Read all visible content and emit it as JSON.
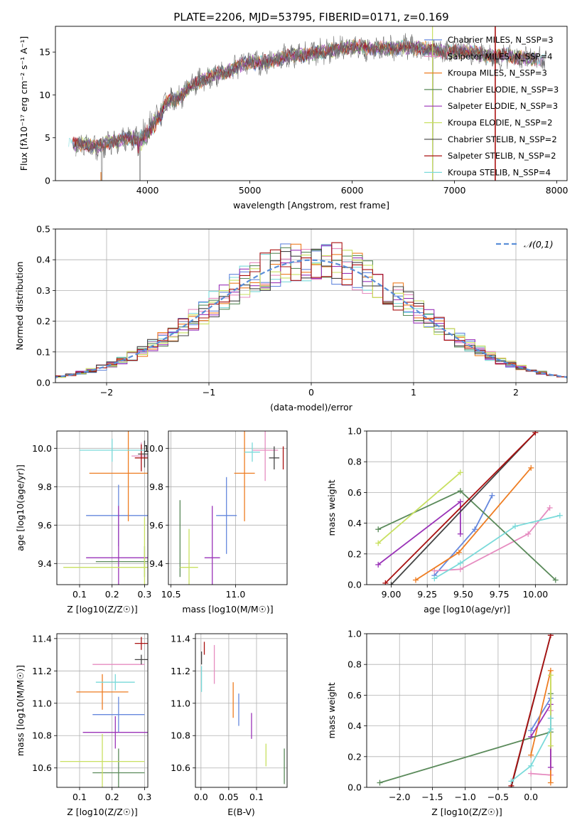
{
  "figure": {
    "title": "PLATE=2206, MJD=53795, FIBERID=0171, z=0.169"
  },
  "model_colors": [
    "#6688dd",
    "#e68cc0",
    "#ee7d22",
    "#5a8a5a",
    "#9a33b8",
    "#c8e060",
    "#444444",
    "#aa1111",
    "#7adada"
  ],
  "chart_data": [
    {
      "id": "spectrum",
      "type": "line",
      "xlabel": "wavelength [Angstrom, rest frame]",
      "ylabel": "Flux [fλ10⁻¹⁷ erg cm⁻² s⁻¹ A⁻¹]",
      "xlim": [
        3100,
        8100
      ],
      "ylim": [
        0,
        18
      ],
      "xticks": [
        4000,
        5000,
        6000,
        7000,
        8000
      ],
      "yticks": [
        0,
        5,
        10,
        15
      ],
      "legend_position": "top-right",
      "continuum_wavelength": [
        3300,
        3400,
        3500,
        3600,
        3700,
        3800,
        3900,
        4000,
        4100,
        4200,
        4300,
        4400,
        4500,
        4600,
        4700,
        4800,
        4900,
        5000,
        5100,
        5200,
        5300,
        5400,
        5500,
        5600,
        5700,
        5800,
        5900,
        6000,
        6100,
        6200,
        6300,
        6400,
        6500,
        6600,
        6700,
        6800,
        6900,
        7000,
        7100,
        7200,
        7300,
        7400,
        7500,
        7600,
        7700,
        7800,
        7900
      ],
      "continuum_flux": [
        4.2,
        4.3,
        3.9,
        4.4,
        4.6,
        5.0,
        4.9,
        6.0,
        8.0,
        9.2,
        9.6,
        10.8,
        11.5,
        12.2,
        12.5,
        12.8,
        13.5,
        13.8,
        13.7,
        14.0,
        14.2,
        14.6,
        14.6,
        14.8,
        15.0,
        15.2,
        15.4,
        15.6,
        15.6,
        15.4,
        15.5,
        15.4,
        15.6,
        15.5,
        15.4,
        15.2,
        15.0,
        15.0,
        15.2,
        14.9,
        14.6,
        14.5,
        14.7,
        14.4,
        14.3,
        14.2,
        14.0
      ],
      "legend": [
        "Chabrier MILES, N_SSP=3",
        "Salpeter MILES, N_SSP=4",
        "Kroupa MILES, N_SSP=3",
        "Chabrier ELODIE, N_SSP=3",
        "Salpeter ELODIE, N_SSP=3",
        "Kroupa ELODIE, N_SSP=2",
        "Chabrier STELIB, N_SSP=2",
        "Salpeter STELIB, N_SSP=2",
        "Kroupa STELIB, N_SSP=4"
      ]
    },
    {
      "id": "residuals",
      "type": "histogram",
      "xlabel": "(data-model)/error",
      "ylabel": "Normed distribution",
      "xlim": [
        -2.5,
        2.5
      ],
      "ylim": [
        0,
        0.5
      ],
      "xticks": [
        -2,
        -1,
        0,
        1,
        2
      ],
      "yticks": [
        0.0,
        0.1,
        0.2,
        0.3,
        0.4,
        0.5
      ],
      "gaussian_label": "𝒩(0,1)",
      "legend_position": "top-right",
      "grid": true
    },
    {
      "id": "age_vs_Z",
      "type": "errorbar",
      "xlabel": "Z [log10(Z/Z☉)]",
      "ylabel": "age  [log10(age/yr)]",
      "xlim": [
        0.03,
        0.31
      ],
      "ylim": [
        9.29,
        10.09
      ],
      "xticks": [
        0.1,
        0.2,
        0.3
      ],
      "yticks": [
        9.4,
        9.6,
        9.8,
        10.0
      ],
      "grid": true,
      "points": [
        {
          "model": 0,
          "x": 0.22,
          "xerr": 0.1,
          "y": 9.65,
          "yerr": 0.16
        },
        {
          "model": 1,
          "x": 0.29,
          "xerr": 0.03,
          "y": 9.96,
          "yerr": 0.07
        },
        {
          "model": 2,
          "x": 0.25,
          "xerr": 0.12,
          "y": 9.87,
          "yerr": 0.25
        },
        {
          "model": 3,
          "x": 0.3,
          "xerr": 0.15,
          "y": 9.41,
          "yerr": 0.08
        },
        {
          "model": 4,
          "x": 0.22,
          "xerr": 0.1,
          "y": 9.43,
          "yerr": 0.27
        },
        {
          "model": 5,
          "x": 0.3,
          "xerr": 0.25,
          "y": 9.38,
          "yerr": 0.26
        },
        {
          "model": 6,
          "x": 0.3,
          "xerr": 0.02,
          "y": 9.97,
          "yerr": 0.07
        },
        {
          "model": 7,
          "x": 0.29,
          "xerr": 0.02,
          "y": 9.95,
          "yerr": 0.07
        },
        {
          "model": 8,
          "x": 0.2,
          "xerr": 0.1,
          "y": 9.99,
          "yerr": 0.06
        }
      ]
    },
    {
      "id": "age_vs_mass",
      "type": "errorbar",
      "xlabel": "mass [log10(M/M☉)]",
      "xlim": [
        10.48,
        11.4
      ],
      "ylim": [
        9.29,
        10.09
      ],
      "xticks": [
        10.5,
        11.0
      ],
      "yticks": [
        9.4,
        9.6,
        9.8,
        10.0
      ],
      "grid": true,
      "points": [
        {
          "model": 0,
          "x": 10.93,
          "xerr": 0.08,
          "y": 9.65,
          "yerr": 0.2
        },
        {
          "model": 1,
          "x": 11.23,
          "xerr": 0.1,
          "y": 9.99,
          "yerr": 0.16
        },
        {
          "model": 2,
          "x": 11.07,
          "xerr": 0.08,
          "y": 9.87,
          "yerr": 0.25
        },
        {
          "model": 3,
          "x": 10.57,
          "xerr": 0.0,
          "y": 9.53,
          "yerr": 0.2
        },
        {
          "model": 4,
          "x": 10.82,
          "xerr": 0.06,
          "y": 9.43,
          "yerr": 0.27
        },
        {
          "model": 5,
          "x": 10.64,
          "xerr": 0.07,
          "y": 9.38,
          "yerr": 0.2
        },
        {
          "model": 6,
          "x": 11.3,
          "xerr": 0.04,
          "y": 9.95,
          "yerr": 0.06
        },
        {
          "model": 7,
          "x": 11.37,
          "xerr": 0.0,
          "y": 9.95,
          "yerr": 0.06
        },
        {
          "model": 8,
          "x": 11.13,
          "xerr": 0.06,
          "y": 9.98,
          "yerr": 0.05
        }
      ]
    },
    {
      "id": "weight_vs_age",
      "type": "line",
      "xlabel": "age  [log10(age/yr)]",
      "ylabel": "mass weight",
      "xlim": [
        8.83,
        10.22
      ],
      "ylim": [
        0,
        1
      ],
      "xticks": [
        9.0,
        9.25,
        9.5,
        9.75,
        10.0
      ],
      "yticks": [
        0.0,
        0.2,
        0.4,
        0.6,
        0.8,
        1.0
      ],
      "grid": true,
      "series": [
        {
          "model": 0,
          "x": [
            9.3,
            9.58,
            9.7
          ],
          "y": [
            0.06,
            0.36,
            0.58
          ]
        },
        {
          "model": 1,
          "x": [
            9.3,
            9.48,
            9.95,
            10.1
          ],
          "y": [
            0.09,
            0.1,
            0.33,
            0.5
          ]
        },
        {
          "model": 2,
          "x": [
            9.17,
            9.47,
            9.97
          ],
          "y": [
            0.03,
            0.21,
            0.76
          ]
        },
        {
          "model": 3,
          "x": [
            8.91,
            9.48,
            10.14
          ],
          "y": [
            0.36,
            0.61,
            0.03
          ]
        },
        {
          "model": 4,
          "x": [
            8.91,
            9.48,
            9.48
          ],
          "y": [
            0.13,
            0.54,
            0.33
          ]
        },
        {
          "model": 5,
          "x": [
            8.91,
            9.48
          ],
          "y": [
            0.27,
            0.73
          ]
        },
        {
          "model": 6,
          "x": [
            9.0,
            10.0
          ],
          "y": [
            0.0,
            0.99
          ]
        },
        {
          "model": 7,
          "x": [
            8.96,
            10.0
          ],
          "y": [
            0.01,
            0.99
          ]
        },
        {
          "model": 8,
          "x": [
            9.3,
            9.48,
            9.86,
            10.17
          ],
          "y": [
            0.04,
            0.14,
            0.38,
            0.45
          ]
        }
      ]
    },
    {
      "id": "mass_vs_Z",
      "type": "errorbar",
      "xlabel": "Z [log10(Z/Z☉)]",
      "ylabel": "mass [log10(M/M☉)]",
      "xlim": [
        0.03,
        0.31
      ],
      "ylim": [
        10.48,
        11.43
      ],
      "xticks": [
        0.1,
        0.2,
        0.3
      ],
      "yticks": [
        10.6,
        10.8,
        11.0,
        11.2,
        11.4
      ],
      "grid": true,
      "points": [
        {
          "model": 0,
          "x": 0.22,
          "xerr": 0.08,
          "y": 10.93,
          "yerr": 0.11
        },
        {
          "model": 1,
          "x": 0.22,
          "xerr": 0.08,
          "y": 11.24,
          "yerr": 0.0
        },
        {
          "model": 2,
          "x": 0.17,
          "xerr": 0.08,
          "y": 11.07,
          "yerr": 0.11
        },
        {
          "model": 3,
          "x": 0.22,
          "xerr": 0.08,
          "y": 10.57,
          "yerr": 0.15
        },
        {
          "model": 4,
          "x": 0.21,
          "xerr": 0.1,
          "y": 10.82,
          "yerr": 0.1
        },
        {
          "model": 5,
          "x": 0.17,
          "xerr": 0.13,
          "y": 10.64,
          "yerr": 0.17
        },
        {
          "model": 6,
          "x": 0.29,
          "xerr": 0.02,
          "y": 11.27,
          "yerr": 0.03
        },
        {
          "model": 7,
          "x": 0.29,
          "xerr": 0.02,
          "y": 11.37,
          "yerr": 0.04
        },
        {
          "model": 8,
          "x": 0.21,
          "xerr": 0.06,
          "y": 11.13,
          "yerr": 0.05
        }
      ]
    },
    {
      "id": "mass_vs_ebv",
      "type": "errorbar",
      "xlabel": "E(B-V)",
      "xlim": [
        -0.01,
        0.155
      ],
      "ylim": [
        10.48,
        11.43
      ],
      "xticks": [
        0.0,
        0.05,
        0.1
      ],
      "yticks": [
        10.6,
        10.8,
        11.0,
        11.2,
        11.4
      ],
      "grid": true,
      "points": [
        {
          "model": 0,
          "x": 0.068,
          "y": 10.96,
          "yerr": 0.1
        },
        {
          "model": 1,
          "x": 0.024,
          "y": 11.24,
          "yerr": 0.12
        },
        {
          "model": 2,
          "x": 0.058,
          "y": 11.02,
          "yerr": 0.11
        },
        {
          "model": 3,
          "x": 0.15,
          "y": 10.61,
          "yerr": 0.11
        },
        {
          "model": 4,
          "x": 0.091,
          "y": 10.86,
          "yerr": 0.08
        },
        {
          "model": 5,
          "x": 0.117,
          "y": 10.68,
          "yerr": 0.07
        },
        {
          "model": 6,
          "x": 0.001,
          "y": 11.28,
          "yerr": 0.04
        },
        {
          "model": 7,
          "x": 0.006,
          "y": 11.34,
          "yerr": 0.04
        },
        {
          "model": 8,
          "x": 0.001,
          "y": 11.15,
          "yerr": 0.08
        }
      ]
    },
    {
      "id": "weight_vs_Z",
      "type": "line",
      "xlabel": "Z [log10(Z/Z☉)]",
      "ylabel": "mass weight",
      "xlim": [
        -2.5,
        0.55
      ],
      "ylim": [
        0,
        1
      ],
      "xticks": [
        -2.0,
        -1.5,
        -1.0,
        -0.5,
        0.0
      ],
      "yticks": [
        0.0,
        0.2,
        0.4,
        0.6,
        0.8,
        1.0
      ],
      "grid": true,
      "series": [
        {
          "model": 0,
          "x": [
            0.0,
            0.3,
            0.3
          ],
          "y": [
            0.37,
            0.58,
            0.45
          ]
        },
        {
          "model": 1,
          "x": [
            0.0,
            0.3,
            0.3
          ],
          "y": [
            0.09,
            0.08,
            0.5
          ]
        },
        {
          "model": 2,
          "x": [
            0.0,
            0.3,
            0.3
          ],
          "y": [
            0.21,
            0.76,
            0.03
          ]
        },
        {
          "model": 3,
          "x": [
            -2.3,
            0.3,
            0.3
          ],
          "y": [
            0.03,
            0.36,
            0.61
          ]
        },
        {
          "model": 4,
          "x": [
            0.0,
            0.3,
            0.3
          ],
          "y": [
            0.33,
            0.54,
            0.13
          ]
        },
        {
          "model": 5,
          "x": [
            0.3,
            0.3
          ],
          "y": [
            0.27,
            0.73
          ]
        },
        {
          "model": 6,
          "x": [
            -0.3,
            0.3
          ],
          "y": [
            0.0,
            0.99
          ]
        },
        {
          "model": 7,
          "x": [
            -0.3,
            0.3
          ],
          "y": [
            0.01,
            0.99
          ]
        },
        {
          "model": 8,
          "x": [
            -0.3,
            0.0,
            0.3,
            0.3
          ],
          "y": [
            0.04,
            0.14,
            0.38,
            0.45
          ]
        }
      ]
    }
  ]
}
